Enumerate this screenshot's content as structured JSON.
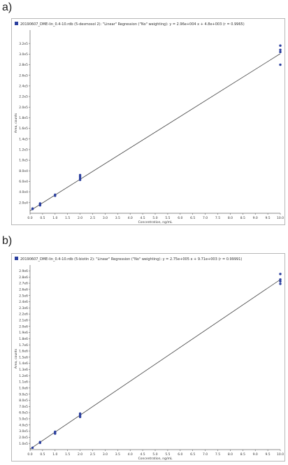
{
  "chart_data": [
    {
      "type": "scatter",
      "panel_label": "a)",
      "title": "20190607_DME-lin_0.4-10.rdb (5-desmosol 2): \"Linear\" Regression (\"No\" weighting): y = 2.96e+004 x + 4.8e+003 (r = 0.9965)",
      "xlabel": "Concentration, ng/mL",
      "ylabel": "Area, counts",
      "xlim": [
        0,
        10
      ],
      "ylim": [
        0,
        340000
      ],
      "x_ticks": [
        "0.0",
        "0.5",
        "1.0",
        "1.5",
        "2.0",
        "2.5",
        "3.0",
        "3.5",
        "4.0",
        "4.5",
        "5.0",
        "5.5",
        "6.0",
        "6.5",
        "7.0",
        "7.5",
        "8.0",
        "8.5",
        "9.0",
        "9.5",
        "10.0"
      ],
      "y_ticks": [
        "2.0e4",
        "4.0e4",
        "6.0e4",
        "8.0e4",
        "1.0e5",
        "1.2e5",
        "1.4e5",
        "1.6e5",
        "1.8e5",
        "2.0e5",
        "2.2e5",
        "2.4e5",
        "2.6e5",
        "2.8e5",
        "3.0e5",
        "3.2e5"
      ],
      "y_tick_values": [
        20000,
        40000,
        60000,
        80000,
        100000,
        120000,
        140000,
        160000,
        180000,
        200000,
        220000,
        240000,
        260000,
        280000,
        300000,
        320000
      ],
      "regression": {
        "slope": 29600,
        "intercept": 4800
      },
      "points": [
        {
          "x": 0.1,
          "y": 8000
        },
        {
          "x": 0.1,
          "y": 9000
        },
        {
          "x": 0.4,
          "y": 15000
        },
        {
          "x": 0.4,
          "y": 17000
        },
        {
          "x": 0.4,
          "y": 18500
        },
        {
          "x": 1.0,
          "y": 33000
        },
        {
          "x": 1.0,
          "y": 35000
        },
        {
          "x": 2.0,
          "y": 63000
        },
        {
          "x": 2.0,
          "y": 66000
        },
        {
          "x": 2.0,
          "y": 69000
        },
        {
          "x": 2.0,
          "y": 72000
        },
        {
          "x": 10.0,
          "y": 280000
        },
        {
          "x": 10.0,
          "y": 304000
        },
        {
          "x": 10.0,
          "y": 308000
        },
        {
          "x": 10.0,
          "y": 316000
        }
      ],
      "grid": false,
      "legend": "top-left"
    },
    {
      "type": "scatter",
      "panel_label": "b)",
      "title": "20190607_DME-lin_0.4-10.rdb (5-biotin 2): \"Linear\" Regression (\"No\" weighting): y = 2.75e+005 x + 9.71e+003 (r = 0.99991)",
      "xlabel": "Concentration, ng/mL",
      "ylabel": "Area, counts",
      "xlim": [
        0,
        10
      ],
      "ylim": [
        0,
        2950000
      ],
      "x_ticks": [
        "0.0",
        "0.5",
        "1.0",
        "1.5",
        "2.0",
        "2.5",
        "3.0",
        "3.5",
        "4.0",
        "4.5",
        "5.0",
        "5.5",
        "6.0",
        "6.5",
        "7.0",
        "7.5",
        "8.0",
        "8.5",
        "9.0",
        "9.5",
        "10.0"
      ],
      "y_ticks": [
        "1.0e5",
        "2.0e5",
        "3.0e5",
        "4.0e5",
        "5.0e5",
        "6.0e5",
        "7.0e5",
        "8.0e5",
        "9.0e5",
        "1.0e6",
        "1.1e6",
        "1.2e6",
        "1.3e6",
        "1.4e6",
        "1.5e6",
        "1.6e6",
        "1.7e6",
        "1.8e6",
        "1.9e6",
        "2.0e6",
        "2.1e6",
        "2.2e6",
        "2.3e6",
        "2.4e6",
        "2.5e6",
        "2.6e6",
        "2.7e6",
        "2.8e6",
        "2.9e6"
      ],
      "y_tick_values": [
        100000,
        200000,
        300000,
        400000,
        500000,
        600000,
        700000,
        800000,
        900000,
        1000000,
        1100000,
        1200000,
        1300000,
        1400000,
        1500000,
        1600000,
        1700000,
        1800000,
        1900000,
        2000000,
        2100000,
        2200000,
        2300000,
        2400000,
        2500000,
        2600000,
        2700000,
        2800000,
        2900000
      ],
      "regression": {
        "slope": 275000,
        "intercept": 9710
      },
      "points": [
        {
          "x": 0.1,
          "y": 30000
        },
        {
          "x": 0.4,
          "y": 110000
        },
        {
          "x": 0.4,
          "y": 118000
        },
        {
          "x": 0.4,
          "y": 122000
        },
        {
          "x": 1.0,
          "y": 260000
        },
        {
          "x": 1.0,
          "y": 275000
        },
        {
          "x": 1.0,
          "y": 290000
        },
        {
          "x": 2.0,
          "y": 530000
        },
        {
          "x": 2.0,
          "y": 550000
        },
        {
          "x": 2.0,
          "y": 570000
        },
        {
          "x": 2.0,
          "y": 585000
        },
        {
          "x": 10.0,
          "y": 2690000
        },
        {
          "x": 10.0,
          "y": 2730000
        },
        {
          "x": 10.0,
          "y": 2760000
        },
        {
          "x": 10.0,
          "y": 2850000
        }
      ],
      "grid": false,
      "legend": "top-left"
    }
  ]
}
